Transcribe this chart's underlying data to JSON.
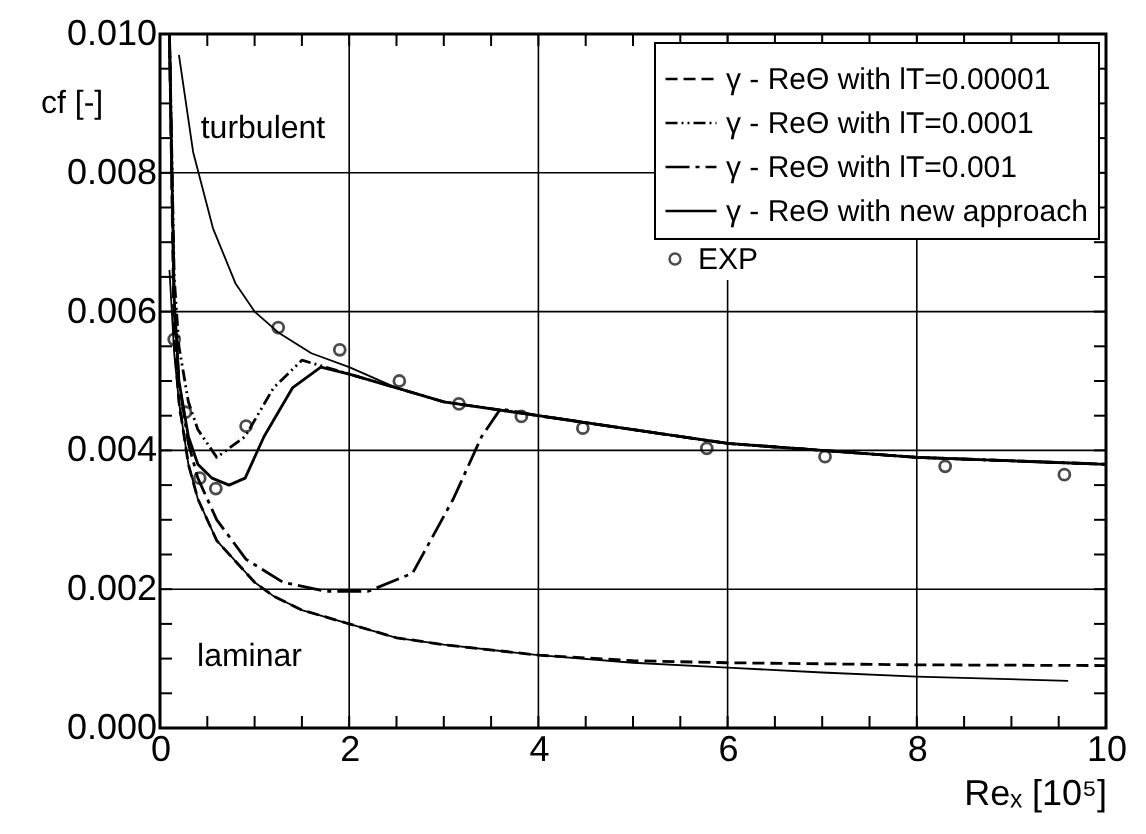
{
  "chart_data": {
    "type": "line",
    "xlabel": "Reₓ [10⁵]",
    "ylabel": "cf [-]",
    "xlim": [
      0,
      10
    ],
    "ylim": [
      0,
      0.01
    ],
    "xticks": [
      0,
      {
        "value": 0.5,
        "label": null
      },
      {
        "value": 1,
        "label": null
      },
      {
        "value": 1.5,
        "label": null
      },
      2,
      {
        "value": 2.5,
        "label": null
      },
      {
        "value": 3,
        "label": null
      },
      {
        "value": 3.5,
        "label": null
      },
      4,
      {
        "value": 4.5,
        "label": null
      },
      {
        "value": 5,
        "label": null
      },
      {
        "value": 5.5,
        "label": null
      },
      6,
      {
        "value": 6.5,
        "label": null
      },
      {
        "value": 7,
        "label": null
      },
      {
        "value": 7.5,
        "label": null
      },
      8,
      {
        "value": 8.5,
        "label": null
      },
      {
        "value": 9,
        "label": null
      },
      {
        "value": 9.5,
        "label": null
      },
      10
    ],
    "yticks": [
      {
        "value": 0,
        "label": "0.000"
      },
      {
        "value": 0.0005,
        "label": null
      },
      {
        "value": 0.001,
        "label": null
      },
      {
        "value": 0.0015,
        "label": null
      },
      0.002,
      {
        "value": 0.0025,
        "label": null
      },
      {
        "value": 0.003,
        "label": null
      },
      {
        "value": 0.0035,
        "label": null
      },
      0.004,
      {
        "value": 0.0045,
        "label": null
      },
      {
        "value": 0.005,
        "label": null
      },
      {
        "value": 0.0055,
        "label": null
      },
      0.006,
      {
        "value": 0.0065,
        "label": null
      },
      {
        "value": 0.007,
        "label": null
      },
      {
        "value": 0.0075,
        "label": null
      },
      0.008,
      {
        "value": 0.0085,
        "label": null
      },
      {
        "value": 0.009,
        "label": null
      },
      {
        "value": 0.0095,
        "label": null
      },
      {
        "value": 0.01,
        "label": "0.010"
      }
    ],
    "grid": true,
    "legend": "top right",
    "series": [
      {
        "color": "#000000",
        "line_style": "solid",
        "x": [
          0.2,
          0.35,
          0.56,
          0.8,
          1.0,
          1.25,
          1.6,
          2.0,
          2.5,
          3.0,
          4.0,
          5.0,
          6.0,
          7.0,
          8.0,
          10.0
        ],
        "values": [
          0.0097,
          0.0083,
          0.0072,
          0.0064,
          0.006,
          0.0057,
          0.0054,
          0.0052,
          0.0049,
          0.0047,
          0.0045,
          0.0043,
          0.0041,
          0.004,
          0.0039,
          0.0038
        ]
      },
      {
        "color": "#000000",
        "line_style": "solid",
        "x": [
          0.1,
          0.15,
          0.2,
          0.3,
          0.4,
          0.6,
          0.8,
          1.0,
          1.2,
          1.5,
          2.0,
          2.5,
          3.0,
          4.0,
          5.0,
          6.0,
          7.0,
          8.0,
          9.6
        ],
        "values": [
          0.0066,
          0.0054,
          0.0047,
          0.0038,
          0.0033,
          0.0027,
          0.0024,
          0.0021,
          0.0019,
          0.0017,
          0.0015,
          0.0013,
          0.0012,
          0.00105,
          0.00094,
          0.00087,
          0.0008,
          0.00074,
          0.00068
        ]
      },
      {
        "name": "γ - ReΘ with lT=0.00001",
        "color": "#000000",
        "line_style": "dashed",
        "x": [
          0.1,
          0.15,
          0.2,
          0.3,
          0.4,
          0.6,
          0.8,
          1.0,
          1.2,
          1.5,
          2.0,
          2.5,
          3.0,
          4.0,
          5.0,
          6.0,
          8.0,
          10.0
        ],
        "values": [
          0.01,
          0.0056,
          0.0047,
          0.0038,
          0.0033,
          0.0027,
          0.0024,
          0.0021,
          0.0019,
          0.0017,
          0.0015,
          0.0013,
          0.0012,
          0.00105,
          0.00097,
          0.00094,
          0.00091,
          0.0009
        ]
      },
      {
        "name": "γ - ReΘ with lT=0.0001",
        "color": "#000000",
        "line_style": "dashdotdot",
        "x": [
          0.1,
          0.15,
          0.2,
          0.3,
          0.4,
          0.6,
          0.9,
          1.2,
          1.5,
          2.0,
          2.5,
          3.0,
          4.0,
          5.0,
          6.0,
          7.0,
          8.0,
          10.0
        ],
        "values": [
          0.01,
          0.0065,
          0.0055,
          0.0047,
          0.0043,
          0.0039,
          0.0042,
          0.0049,
          0.0053,
          0.0051,
          0.0049,
          0.0047,
          0.0045,
          0.0043,
          0.0041,
          0.004,
          0.0039,
          0.0038
        ]
      },
      {
        "name": "γ - ReΘ with lT=0.001",
        "color": "#000000",
        "line_style": "longdashdot",
        "x": [
          0.1,
          0.15,
          0.2,
          0.3,
          0.4,
          0.6,
          0.91,
          1.3,
          1.75,
          2.2,
          2.67,
          3.1,
          3.4,
          3.6,
          4.0,
          5.0,
          6.0,
          7.0,
          8.0,
          10.0
        ],
        "values": [
          0.01,
          0.006,
          0.005,
          0.0041,
          0.0036,
          0.003,
          0.00243,
          0.0021,
          0.00197,
          0.00197,
          0.00223,
          0.0033,
          0.0042,
          0.0046,
          0.0045,
          0.0043,
          0.0041,
          0.004,
          0.0039,
          0.0038
        ]
      },
      {
        "name": "γ - ReΘ with new approach",
        "color": "#000000",
        "line_style": "solid",
        "x": [
          0.1,
          0.15,
          0.2,
          0.3,
          0.4,
          0.55,
          0.73,
          0.9,
          1.1,
          1.4,
          1.7,
          2.0,
          2.5,
          3.0,
          4.0,
          5.0,
          6.0,
          7.0,
          8.0,
          10.0
        ],
        "values": [
          0.01,
          0.0062,
          0.005,
          0.0042,
          0.0038,
          0.0036,
          0.0035,
          0.0036,
          0.0042,
          0.0049,
          0.0052,
          0.0051,
          0.0049,
          0.0047,
          0.0045,
          0.0043,
          0.0041,
          0.004,
          0.0039,
          0.0038
        ]
      },
      {
        "name": "EXP",
        "type": "scatter",
        "marker": "circle",
        "color": "#000000",
        "x": [
          0.15,
          0.27,
          0.42,
          0.59,
          0.91,
          1.25,
          1.9,
          2.53,
          3.16,
          3.82,
          4.47,
          5.78,
          7.03,
          8.3,
          9.56
        ],
        "values": [
          0.0056,
          0.00455,
          0.0036,
          0.00345,
          0.00435,
          0.00577,
          0.00545,
          0.005,
          0.00467,
          0.00449,
          0.00432,
          0.00403,
          0.00391,
          0.00377,
          0.00365
        ]
      }
    ],
    "annotations": [
      {
        "text": "turbulent",
        "x": 0.56,
        "y": 0.0072
      },
      {
        "text": "laminar",
        "x": 1.2,
        "y": 0.0019
      }
    ]
  }
}
